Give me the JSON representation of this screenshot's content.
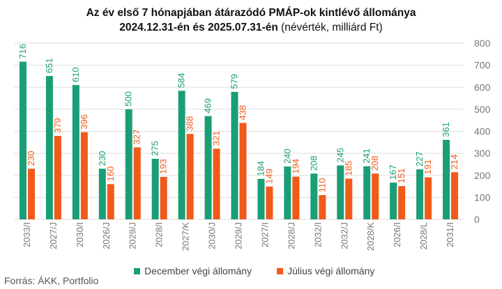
{
  "title": {
    "line1": "Az év első 7 hónapjában átárazódó PMÁP-ok kintlévő állománya",
    "line2_bold": "2024.12.31-én és 2025.07.31-én",
    "line2_normal": "(névérték, milliárd Ft)"
  },
  "source": "Forrás: ÁKK, Portfolio",
  "colors": {
    "december": "#1a9e77",
    "julius": "#f05a1a",
    "grid": "#dddddd",
    "axis_text": "#777777"
  },
  "chart_data": {
    "type": "bar",
    "categories": [
      "2033/I",
      "2027/J",
      "2030/I",
      "2026/J",
      "2029/J",
      "2028/I",
      "2027/K",
      "2030/J",
      "2029/J",
      "2027/I",
      "2028/J",
      "2032/I",
      "2032/J",
      "2028/K",
      "2026/I",
      "2028/L",
      "2031/I"
    ],
    "series": [
      {
        "name": "December végi állomány",
        "values": [
          716,
          651,
          610,
          230,
          500,
          275,
          584,
          469,
          579,
          184,
          240,
          208,
          245,
          241,
          167,
          227,
          361
        ]
      },
      {
        "name": "Július végi állomány",
        "values": [
          230,
          379,
          396,
          160,
          327,
          193,
          388,
          321,
          438,
          149,
          194,
          110,
          185,
          208,
          151,
          191,
          214
        ]
      }
    ],
    "ylim": [
      0,
      800
    ],
    "yticks": [
      "0",
      "100",
      "200",
      "300",
      "400",
      "500",
      "600",
      "700",
      "800"
    ],
    "grid": true,
    "legend_position": "bottom"
  }
}
